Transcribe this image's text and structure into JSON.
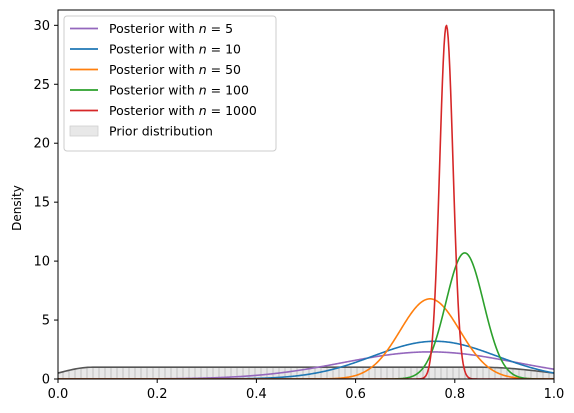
{
  "chart_data": {
    "type": "line",
    "title": "",
    "xlabel": "",
    "ylabel": "Density",
    "xlim": [
      0.0,
      1.0
    ],
    "ylim": [
      0,
      31.3
    ],
    "x_ticks": [
      "0.0",
      "0.2",
      "0.4",
      "0.6",
      "0.8",
      "1.0"
    ],
    "y_ticks": [
      "0",
      "5",
      "10",
      "15",
      "20",
      "25",
      "30"
    ],
    "grid": false,
    "legend_position": "top-left",
    "prior": {
      "name": "Prior distribution",
      "type": "area",
      "color": "#555555",
      "fill": "#e8e8e8",
      "peak_density": 1.0,
      "plateau": [
        0.07,
        0.85
      ]
    },
    "series": [
      {
        "name": "Posterior with $n = 5$",
        "label_prefix": "Posterior with ",
        "label_n": "5",
        "color": "#9467bd",
        "mean": 0.75,
        "sd": 0.175,
        "peak": 2.3
      },
      {
        "name": "Posterior with $n = 10$",
        "label_prefix": "Posterior with ",
        "label_n": "10",
        "color": "#1f77b4",
        "mean": 0.76,
        "sd": 0.125,
        "peak": 3.2
      },
      {
        "name": "Posterior with $n = 50$",
        "label_prefix": "Posterior with ",
        "label_n": "50",
        "color": "#ff7f0e",
        "mean": 0.75,
        "sd": 0.06,
        "peak": 6.8
      },
      {
        "name": "Posterior with $n = 100$",
        "label_prefix": "Posterior with ",
        "label_n": "100",
        "color": "#2ca02c",
        "mean": 0.82,
        "sd": 0.038,
        "peak": 10.7
      },
      {
        "name": "Posterior with $n = 1000$",
        "label_prefix": "Posterior with ",
        "label_n": "1000",
        "color": "#d62728",
        "mean": 0.783,
        "sd": 0.0135,
        "peak": 30.0
      }
    ]
  }
}
